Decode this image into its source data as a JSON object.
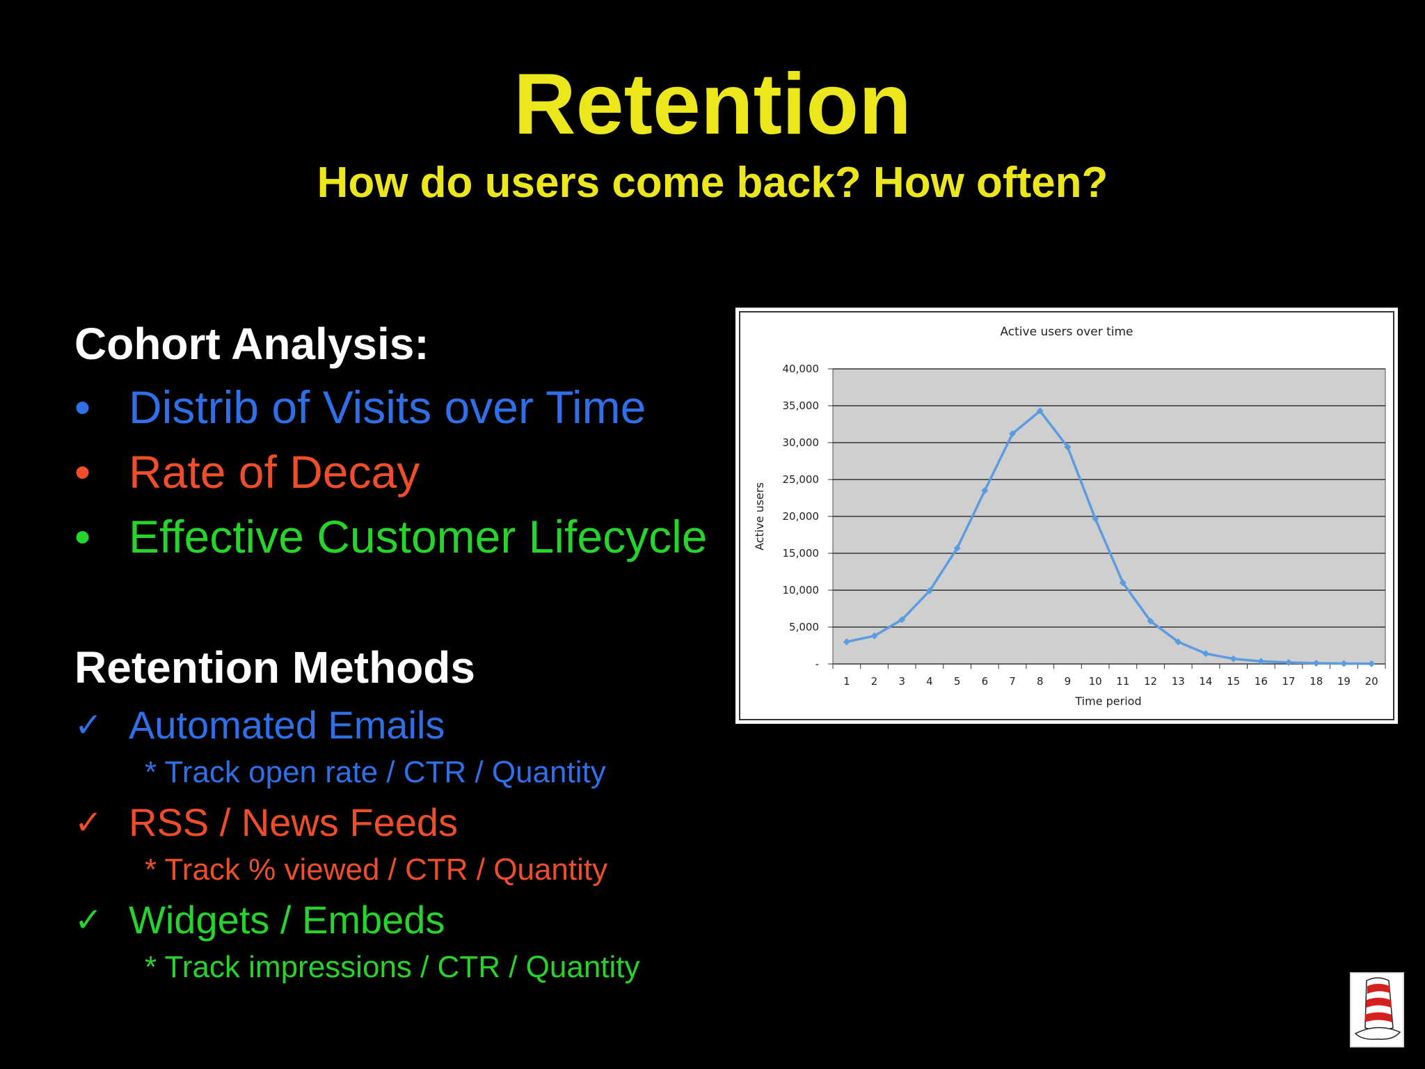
{
  "slide": {
    "title": "Retention",
    "subtitle": "How do users come back? How often?"
  },
  "cohort": {
    "heading": "Cohort Analysis:",
    "bullet_symbol": "•",
    "items": [
      {
        "label": "Distrib of Visits over Time",
        "color": "#2F6FE8"
      },
      {
        "label": "Rate of Decay",
        "color": "#F04E2A"
      },
      {
        "label": "Effective Customer Lifecycle",
        "color": "#27D42B"
      }
    ]
  },
  "methods": {
    "heading": "Retention Methods",
    "check_symbol": "✓",
    "items": [
      {
        "label": "Automated Emails",
        "detail": "* Track open rate / CTR / Quantity",
        "color": "#2F6FE8"
      },
      {
        "label": "RSS / News Feeds",
        "detail": "* Track % viewed / CTR / Quantity",
        "color": "#F04E2A"
      },
      {
        "label": "Widgets / Embeds",
        "detail": "* Track impressions / CTR / Quantity",
        "color": "#27D42B"
      }
    ]
  },
  "chart_data": {
    "type": "line",
    "title": "Active users over time",
    "xlabel": "Time period",
    "ylabel": "Active users",
    "x": [
      1,
      2,
      3,
      4,
      5,
      6,
      7,
      8,
      9,
      10,
      11,
      12,
      13,
      14,
      15,
      16,
      17,
      18,
      19,
      20
    ],
    "series": [
      {
        "values": [
          3000,
          3800,
          6000,
          9900,
          15700,
          23500,
          31200,
          34300,
          29400,
          19700,
          11000,
          5800,
          3000,
          1400,
          700,
          350,
          200,
          100,
          50,
          30
        ]
      }
    ],
    "ylim": [
      0,
      40000
    ],
    "yticks": [
      0,
      5000,
      10000,
      15000,
      20000,
      25000,
      30000,
      35000,
      40000
    ],
    "ytick_labels": [
      "-",
      "5,000",
      "10,000",
      "15,000",
      "20,000",
      "25,000",
      "30,000",
      "35,000",
      "40,000"
    ],
    "grid": true,
    "plot_background": "#CFCFCF",
    "line_color": "#5B9BE0"
  }
}
